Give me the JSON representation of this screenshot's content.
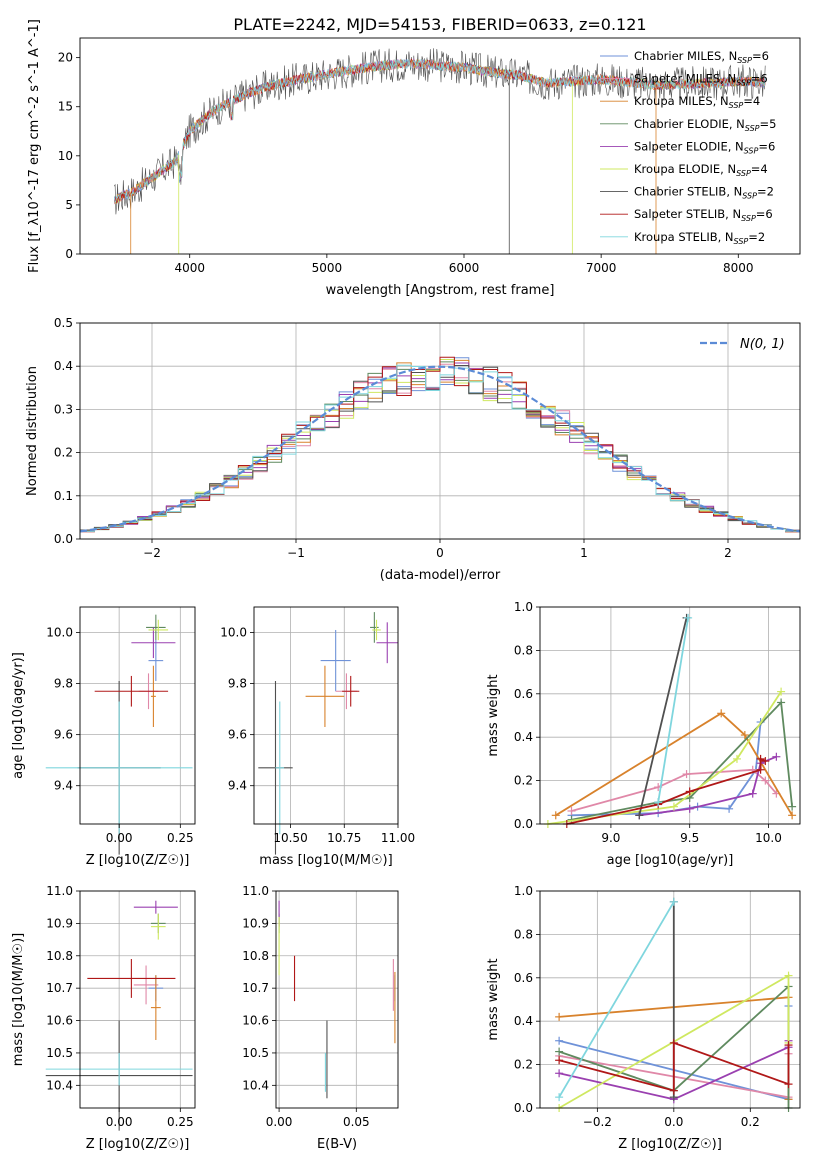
{
  "figure": {
    "title": "PLATE=2242, MJD=54153, FIBERID=0633, z=0.121"
  },
  "colors": {
    "Chabrier MILES": "#6f92d8",
    "Salpeter MILES": "#e088a8",
    "Kroupa MILES": "#d8822c",
    "Chabrier ELODIE": "#5f8a5f",
    "Salpeter ELODIE": "#9a40b0",
    "Kroupa ELODIE": "#cfe860",
    "Chabrier STELIB": "#505050",
    "Salpeter STELIB": "#b01818",
    "Kroupa STELIB": "#7fd6de",
    "normal": "#5b8bd6"
  },
  "chart_data": [
    {
      "type": "line",
      "name": "spectrum",
      "xlabel": "wavelength [Angstrom, rest frame]",
      "ylabel": "Flux [f_λ10^-17 erg cm^-2 s^-1 A^-1]",
      "xlim": [
        3200,
        8450
      ],
      "ylim": [
        0,
        22
      ],
      "xticks": [
        4000,
        5000,
        6000,
        7000,
        8000
      ],
      "yticks": [
        0,
        5,
        10,
        15,
        20
      ],
      "grid": false,
      "legend_position": "top-right",
      "legend": [
        {
          "key": "Chabrier MILES",
          "label": "Chabrier MILES, N",
          "sub": "SSP",
          "tail": "=6"
        },
        {
          "key": "Salpeter MILES",
          "label": "Salpeter MILES, N",
          "sub": "SSP",
          "tail": "=6"
        },
        {
          "key": "Kroupa MILES",
          "label": "Kroupa MILES, N",
          "sub": "SSP",
          "tail": "=4"
        },
        {
          "key": "Chabrier ELODIE",
          "label": "Chabrier ELODIE, N",
          "sub": "SSP",
          "tail": "=5"
        },
        {
          "key": "Salpeter ELODIE",
          "label": "Salpeter ELODIE, N",
          "sub": "SSP",
          "tail": "=6"
        },
        {
          "key": "Kroupa ELODIE",
          "label": "Kroupa ELODIE, N",
          "sub": "SSP",
          "tail": "=4"
        },
        {
          "key": "Chabrier STELIB",
          "label": "Chabrier STELIB, N",
          "sub": "SSP",
          "tail": "=2"
        },
        {
          "key": "Salpeter STELIB",
          "label": "Salpeter STELIB, N",
          "sub": "SSP",
          "tail": "=6"
        },
        {
          "key": "Kroupa STELIB",
          "label": "Kroupa STELIB, N",
          "sub": "SSP",
          "tail": "=2"
        }
      ],
      "data_x": [
        3450,
        3600,
        3800,
        3900,
        4000,
        4100,
        4200,
        4400,
        4600,
        4800,
        5000,
        5200,
        5400,
        5600,
        5800,
        6000,
        6200,
        6400,
        6600,
        6800,
        7000,
        7200,
        7400,
        7600,
        7800,
        8000,
        8200
      ],
      "data_y": [
        5.5,
        6.5,
        8.5,
        9.5,
        12.5,
        13.8,
        14.8,
        16.2,
        17.2,
        17.8,
        18.3,
        18.8,
        19.2,
        19.4,
        19.2,
        19.0,
        18.5,
        18.2,
        17.4,
        17.6,
        17.8,
        17.5,
        17.2,
        17.3,
        17.4,
        17.6,
        17.5
      ]
    },
    {
      "type": "line",
      "name": "residual-distribution",
      "xlabel": "(data-model)/error",
      "ylabel": "Normed distribution",
      "xlim": [
        -2.5,
        2.5
      ],
      "ylim": [
        0,
        0.5
      ],
      "xticks": [
        -2,
        -1,
        0,
        1,
        2
      ],
      "yticks": [
        0.0,
        0.1,
        0.2,
        0.3,
        0.4,
        0.5
      ],
      "grid": true,
      "legend_position": "top-right",
      "legend_label": "N(0, 1)",
      "hist_edges_start": -2.5,
      "hist_bin_width": 0.1
    },
    {
      "type": "scatter",
      "name": "age-vs-Z",
      "xlabel": "Z [log10(Z/Z☉)]",
      "ylabel": "age [log10(age/yr)]",
      "xlim": [
        -0.16,
        0.31
      ],
      "ylim": [
        9.25,
        10.1
      ],
      "xticks": [
        0.0,
        0.25
      ],
      "yticks": [
        9.4,
        9.6,
        9.8,
        10.0
      ],
      "grid": true,
      "points": [
        {
          "key": "Chabrier MILES",
          "x": 0.15,
          "y": 9.89,
          "ex": 0.03,
          "ey": 0.08
        },
        {
          "key": "Salpeter MILES",
          "x": 0.12,
          "y": 9.77,
          "ex": 0.04,
          "ey": 0.07
        },
        {
          "key": "Kroupa MILES",
          "x": 0.14,
          "y": 9.75,
          "ex": 0.01,
          "ey": 0.12
        },
        {
          "key": "Chabrier ELODIE",
          "x": 0.15,
          "y": 10.02,
          "ex": 0.04,
          "ey": 0.05
        },
        {
          "key": "Salpeter ELODIE",
          "x": 0.14,
          "y": 9.96,
          "ex": 0.09,
          "ey": 0.06
        },
        {
          "key": "Kroupa ELODIE",
          "x": 0.16,
          "y": 10.01,
          "ex": 0.04,
          "ey": 0.04
        },
        {
          "key": "Chabrier STELIB",
          "x": 0.0,
          "y": 9.47,
          "ex": 0.17,
          "ey": 0.34
        },
        {
          "key": "Salpeter STELIB",
          "x": 0.05,
          "y": 9.77,
          "ex": 0.15,
          "ey": 0.06
        },
        {
          "key": "Kroupa STELIB",
          "x": 0.0,
          "y": 9.47,
          "ex": 0.3,
          "ey": 0.26
        }
      ]
    },
    {
      "type": "scatter",
      "name": "age-vs-mass",
      "xlabel": "mass [log10(M/M☉)]",
      "ylabel": "",
      "xlim": [
        10.33,
        11.0
      ],
      "ylim": [
        9.25,
        10.1
      ],
      "xticks": [
        10.5,
        10.75,
        11.0
      ],
      "yticks": [
        9.4,
        9.6,
        9.8,
        10.0
      ],
      "grid": true,
      "points": [
        {
          "key": "Chabrier MILES",
          "x": 10.71,
          "y": 9.89,
          "ex": 0.07,
          "ey": 0.12
        },
        {
          "key": "Salpeter MILES",
          "x": 10.76,
          "y": 9.77,
          "ex": 0.05,
          "ey": 0.07
        },
        {
          "key": "Kroupa MILES",
          "x": 10.66,
          "y": 9.75,
          "ex": 0.09,
          "ey": 0.12
        },
        {
          "key": "Chabrier ELODIE",
          "x": 10.89,
          "y": 10.02,
          "ex": 0.02,
          "ey": 0.06
        },
        {
          "key": "Salpeter ELODIE",
          "x": 10.95,
          "y": 9.96,
          "ex": 0.05,
          "ey": 0.08
        },
        {
          "key": "Kroupa ELODIE",
          "x": 10.9,
          "y": 10.01,
          "ex": 0.02,
          "ey": 0.04
        },
        {
          "key": "Chabrier STELIB",
          "x": 10.43,
          "y": 9.47,
          "ex": 0.08,
          "ey": 0.34
        },
        {
          "key": "Salpeter STELIB",
          "x": 10.78,
          "y": 9.77,
          "ex": 0.04,
          "ey": 0.06
        },
        {
          "key": "Kroupa STELIB",
          "x": 10.45,
          "y": 9.47,
          "ex": 0.02,
          "ey": 0.26
        }
      ]
    },
    {
      "type": "line",
      "name": "mass-weight-vs-age",
      "xlabel": "age [log10(age/yr)]",
      "ylabel": "mass weight",
      "xlim": [
        8.55,
        10.2
      ],
      "ylim": [
        0,
        1.0
      ],
      "xticks": [
        9.0,
        9.5,
        10.0
      ],
      "yticks": [
        0.0,
        0.2,
        0.4,
        0.6,
        0.8,
        1.0
      ],
      "grid": true,
      "series": [
        {
          "key": "Chabrier MILES",
          "x": [
            8.75,
            9.3,
            9.55,
            9.75,
            9.92,
            9.95
          ],
          "y": [
            0.04,
            0.05,
            0.08,
            0.07,
            0.25,
            0.47
          ]
        },
        {
          "key": "Salpeter MILES",
          "x": [
            8.75,
            9.3,
            9.48,
            9.9,
            9.98,
            10.05
          ],
          "y": [
            0.06,
            0.17,
            0.23,
            0.25,
            0.2,
            0.14
          ]
        },
        {
          "key": "Kroupa MILES",
          "x": [
            8.65,
            9.7,
            9.85,
            10.15
          ],
          "y": [
            0.04,
            0.51,
            0.41,
            0.04
          ]
        },
        {
          "key": "Chabrier ELODIE",
          "x": [
            8.75,
            9.3,
            9.5,
            10.08,
            10.15
          ],
          "y": [
            0.02,
            0.1,
            0.12,
            0.56,
            0.08
          ]
        },
        {
          "key": "Salpeter ELODIE",
          "x": [
            9.18,
            9.5,
            9.9,
            9.95,
            10.05
          ],
          "y": [
            0.04,
            0.07,
            0.14,
            0.28,
            0.31
          ]
        },
        {
          "key": "Kroupa ELODIE",
          "x": [
            8.6,
            9.4,
            9.8,
            10.08
          ],
          "y": [
            0.0,
            0.08,
            0.3,
            0.61
          ]
        },
        {
          "key": "Chabrier STELIB",
          "x": [
            9.18,
            9.48
          ],
          "y": [
            0.04,
            0.95
          ]
        },
        {
          "key": "Salpeter STELIB",
          "x": [
            8.72,
            9.3,
            9.5,
            9.95,
            9.95,
            9.98
          ],
          "y": [
            0.0,
            0.09,
            0.15,
            0.25,
            0.3,
            0.29
          ]
        },
        {
          "key": "Kroupa STELIB",
          "x": [
            9.3,
            9.49
          ],
          "y": [
            0.1,
            0.95
          ]
        }
      ]
    },
    {
      "type": "scatter",
      "name": "mass-vs-Z",
      "xlabel": "Z [log10(Z/Z☉)]",
      "ylabel": "mass [log10(M/M☉)]",
      "xlim": [
        -0.16,
        0.31
      ],
      "ylim": [
        10.33,
        11.0
      ],
      "xticks": [
        0.0,
        0.25
      ],
      "yticks": [
        10.4,
        10.5,
        10.6,
        10.7,
        10.8,
        10.9,
        11.0
      ],
      "grid": true,
      "points": [
        {
          "key": "Chabrier MILES",
          "x": 0.15,
          "y": 10.7,
          "ex": 0.03,
          "ey": 0.04
        },
        {
          "key": "Salpeter MILES",
          "x": 0.11,
          "y": 10.71,
          "ex": 0.05,
          "ey": 0.06
        },
        {
          "key": "Kroupa MILES",
          "x": 0.15,
          "y": 10.64,
          "ex": 0.02,
          "ey": 0.1
        },
        {
          "key": "Chabrier ELODIE",
          "x": 0.16,
          "y": 10.9,
          "ex": 0.03,
          "ey": 0.03
        },
        {
          "key": "Salpeter ELODIE",
          "x": 0.15,
          "y": 10.95,
          "ex": 0.09,
          "ey": 0.02
        },
        {
          "key": "Kroupa ELODIE",
          "x": 0.16,
          "y": 10.89,
          "ex": 0.03,
          "ey": 0.04
        },
        {
          "key": "Chabrier STELIB",
          "x": 0.0,
          "y": 10.43,
          "ex": 0.3,
          "ey": 0.17
        },
        {
          "key": "Salpeter STELIB",
          "x": 0.05,
          "y": 10.73,
          "ex": 0.18,
          "ey": 0.06
        },
        {
          "key": "Kroupa STELIB",
          "x": 0.0,
          "y": 10.45,
          "ex": 0.3,
          "ey": 0.05
        }
      ]
    },
    {
      "type": "scatter",
      "name": "mass-vs-EBV",
      "xlabel": "E(B-V)",
      "ylabel": "",
      "xlim": [
        -0.002,
        0.077
      ],
      "ylim": [
        10.33,
        11.0
      ],
      "xticks": [
        0.0,
        0.05
      ],
      "yticks": [
        10.4,
        10.5,
        10.6,
        10.7,
        10.8,
        10.9,
        11.0
      ],
      "grid": true,
      "points": [
        {
          "key": "Chabrier MILES",
          "x": 0.075,
          "y": 10.7,
          "ex": 0,
          "ey": 0.04
        },
        {
          "key": "Salpeter MILES",
          "x": 0.074,
          "y": 10.71,
          "ex": 0,
          "ey": 0.08
        },
        {
          "key": "Kroupa MILES",
          "x": 0.075,
          "y": 10.64,
          "ex": 0,
          "ey": 0.11
        },
        {
          "key": "Chabrier ELODIE",
          "x": 0.0,
          "y": 10.9,
          "ex": 0,
          "ey": 0.03
        },
        {
          "key": "Salpeter ELODIE",
          "x": 0.0,
          "y": 10.93,
          "ex": 0,
          "ey": 0.04
        },
        {
          "key": "Kroupa ELODIE",
          "x": 0.0,
          "y": 10.83,
          "ex": 0,
          "ey": 0.09
        },
        {
          "key": "Chabrier STELIB",
          "x": 0.031,
          "y": 10.48,
          "ex": 0,
          "ey": 0.12
        },
        {
          "key": "Salpeter STELIB",
          "x": 0.01,
          "y": 10.73,
          "ex": 0,
          "ey": 0.07
        },
        {
          "key": "Kroupa STELIB",
          "x": 0.03,
          "y": 10.44,
          "ex": 0,
          "ey": 0.06
        }
      ]
    },
    {
      "type": "line",
      "name": "mass-weight-vs-Z",
      "xlabel": "Z [log10(Z/Z☉)]",
      "ylabel": "mass weight",
      "xlim": [
        -0.35,
        0.33
      ],
      "ylim": [
        0,
        1.0
      ],
      "xticks": [
        -0.2,
        0.0,
        0.2
      ],
      "yticks": [
        0.0,
        0.2,
        0.4,
        0.6,
        0.8,
        1.0
      ],
      "grid": true,
      "series": [
        {
          "key": "Chabrier MILES",
          "x": [
            -0.3,
            0.3,
            0.3
          ],
          "y": [
            0.31,
            0.04,
            0.47
          ]
        },
        {
          "key": "Salpeter MILES",
          "x": [
            -0.3,
            0.3,
            0.3
          ],
          "y": [
            0.24,
            0.05,
            0.25
          ]
        },
        {
          "key": "Kroupa MILES",
          "x": [
            -0.3,
            0.3,
            0.3
          ],
          "y": [
            0.42,
            0.51,
            0.04
          ]
        },
        {
          "key": "Chabrier ELODIE",
          "x": [
            -0.3,
            0.0,
            0.3,
            0.3
          ],
          "y": [
            0.26,
            0.08,
            0.56,
            0.0
          ]
        },
        {
          "key": "Salpeter ELODIE",
          "x": [
            -0.3,
            0.0,
            0.3,
            0.3
          ],
          "y": [
            0.16,
            0.04,
            0.28,
            0.31
          ]
        },
        {
          "key": "Kroupa ELODIE",
          "x": [
            -0.3,
            0.3,
            0.3
          ],
          "y": [
            0.0,
            0.61,
            0.3
          ]
        },
        {
          "key": "Chabrier STELIB",
          "x": [
            0.0,
            0.0
          ],
          "y": [
            0.05,
            0.95
          ]
        },
        {
          "key": "Salpeter STELIB",
          "x": [
            -0.3,
            0.0,
            0.0,
            0.3,
            0.3
          ],
          "y": [
            0.22,
            0.08,
            0.3,
            0.11,
            0.29
          ]
        },
        {
          "key": "Kroupa STELIB",
          "x": [
            -0.3,
            0.0
          ],
          "y": [
            0.05,
            0.95
          ]
        }
      ]
    }
  ]
}
